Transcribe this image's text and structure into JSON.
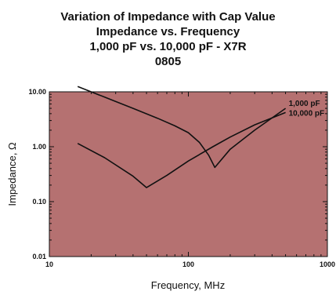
{
  "chart_data": {
    "type": "line",
    "title": [
      "Variation of Impedance with Cap Value",
      "Impedance vs. Frequency",
      "1,000 pF vs. 10,000 pF - X7R",
      "0805"
    ],
    "xlabel": "Frequency, MHz",
    "ylabel": "Impedance, Ω",
    "xscale": "log",
    "yscale": "log",
    "xlim": [
      10,
      1000
    ],
    "ylim": [
      0.01,
      10
    ],
    "x_ticks": [
      10,
      100,
      1000
    ],
    "x_tick_labels": [
      "10",
      "100",
      "1000"
    ],
    "y_ticks": [
      0.01,
      0.1,
      1,
      10
    ],
    "y_tick_labels": [
      "0.01",
      "0.10",
      "1.00",
      "10.00"
    ],
    "grid": false,
    "plot_background": "#b57171",
    "line_color": "#111111",
    "series": [
      {
        "name": "1,000 pF",
        "x": [
          16,
          25,
          40,
          60,
          80,
          100,
          120,
          140,
          155,
          200,
          300,
          500
        ],
        "y": [
          12.5,
          8.0,
          5.0,
          3.3,
          2.4,
          1.8,
          1.2,
          0.7,
          0.42,
          0.9,
          2.0,
          5.0
        ]
      },
      {
        "name": "10,000 pF",
        "x": [
          16,
          25,
          40,
          50,
          70,
          100,
          150,
          200,
          300,
          500
        ],
        "y": [
          1.15,
          0.63,
          0.29,
          0.18,
          0.3,
          0.55,
          1.0,
          1.5,
          2.5,
          4.2
        ]
      }
    ]
  }
}
